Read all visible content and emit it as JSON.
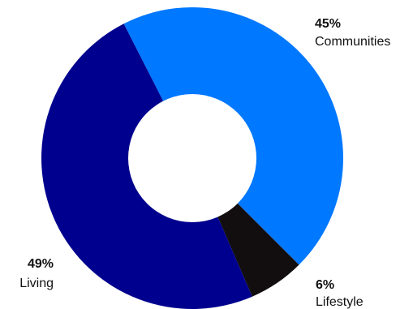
{
  "chart_data": {
    "type": "pie",
    "variant": "donut",
    "title": "",
    "slices": [
      {
        "label": "Communities",
        "value": 45,
        "percent_label": "45%",
        "color": "#0078FF"
      },
      {
        "label": "Lifestyle",
        "value": 6,
        "percent_label": "6%",
        "color": "#120E10"
      },
      {
        "label": "Living",
        "value": 49,
        "percent_label": "49%",
        "color": "#00008E"
      }
    ],
    "start_angle_deg": -27,
    "direction": "clockwise",
    "legend": "none"
  }
}
